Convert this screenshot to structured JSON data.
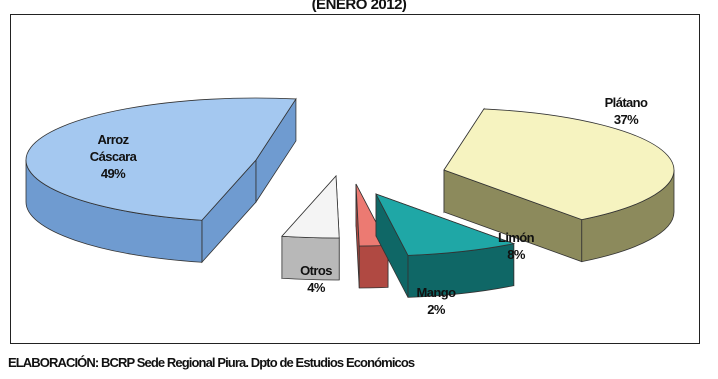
{
  "title": "(ENERO 2012)",
  "source": "ELABORACIÓN: BCRP Sede Regional Piura. Dpto de Estudios Económicos",
  "chart_data": {
    "type": "pie",
    "title": "(ENERO 2012)",
    "three_d": true,
    "exploded": true,
    "slices": [
      {
        "name": "Arroz Cáscara",
        "value": 49,
        "label": "49%",
        "color": "#a4c8f0",
        "side_color": "#6f9bd0"
      },
      {
        "name": "Plátano",
        "value": 37,
        "label": "37%",
        "color": "#f6f3c0",
        "side_color": "#8c8a5c"
      },
      {
        "name": "Limón",
        "value": 8,
        "label": "8%",
        "color": "#1fa7a6",
        "side_color": "#0f6766"
      },
      {
        "name": "Mango",
        "value": 2,
        "label": "2%",
        "color": "#ec7a72",
        "side_color": "#b04942"
      },
      {
        "name": "Otros",
        "value": 4,
        "label": "4%",
        "color": "#f4f4f4",
        "side_color": "#b8b8b8"
      }
    ]
  }
}
